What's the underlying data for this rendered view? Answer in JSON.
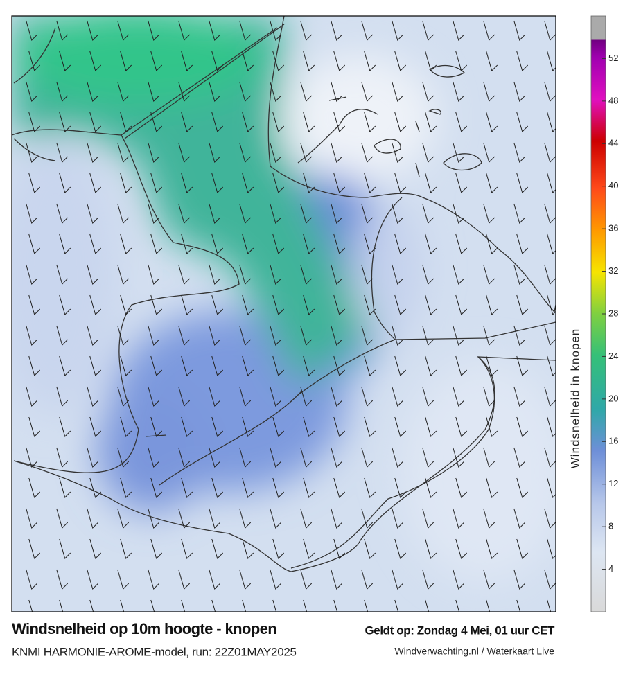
{
  "header": {
    "title": "Windsnelheid op 10m hoogte - knopen",
    "subtitle": "KNMI HARMONIE-AROME-model, run: 22Z01MAY2025",
    "valid_time": "Geldt op: Zondag 4 Mei, 01 uur CET",
    "source": "Windverwachting.nl / Waterkaart Live"
  },
  "colorbar": {
    "label": "Windsnelheid in knopen",
    "range": [
      0,
      56
    ],
    "ticks": [
      4,
      8,
      12,
      16,
      20,
      24,
      28,
      32,
      36,
      40,
      44,
      48,
      52
    ]
  }
}
